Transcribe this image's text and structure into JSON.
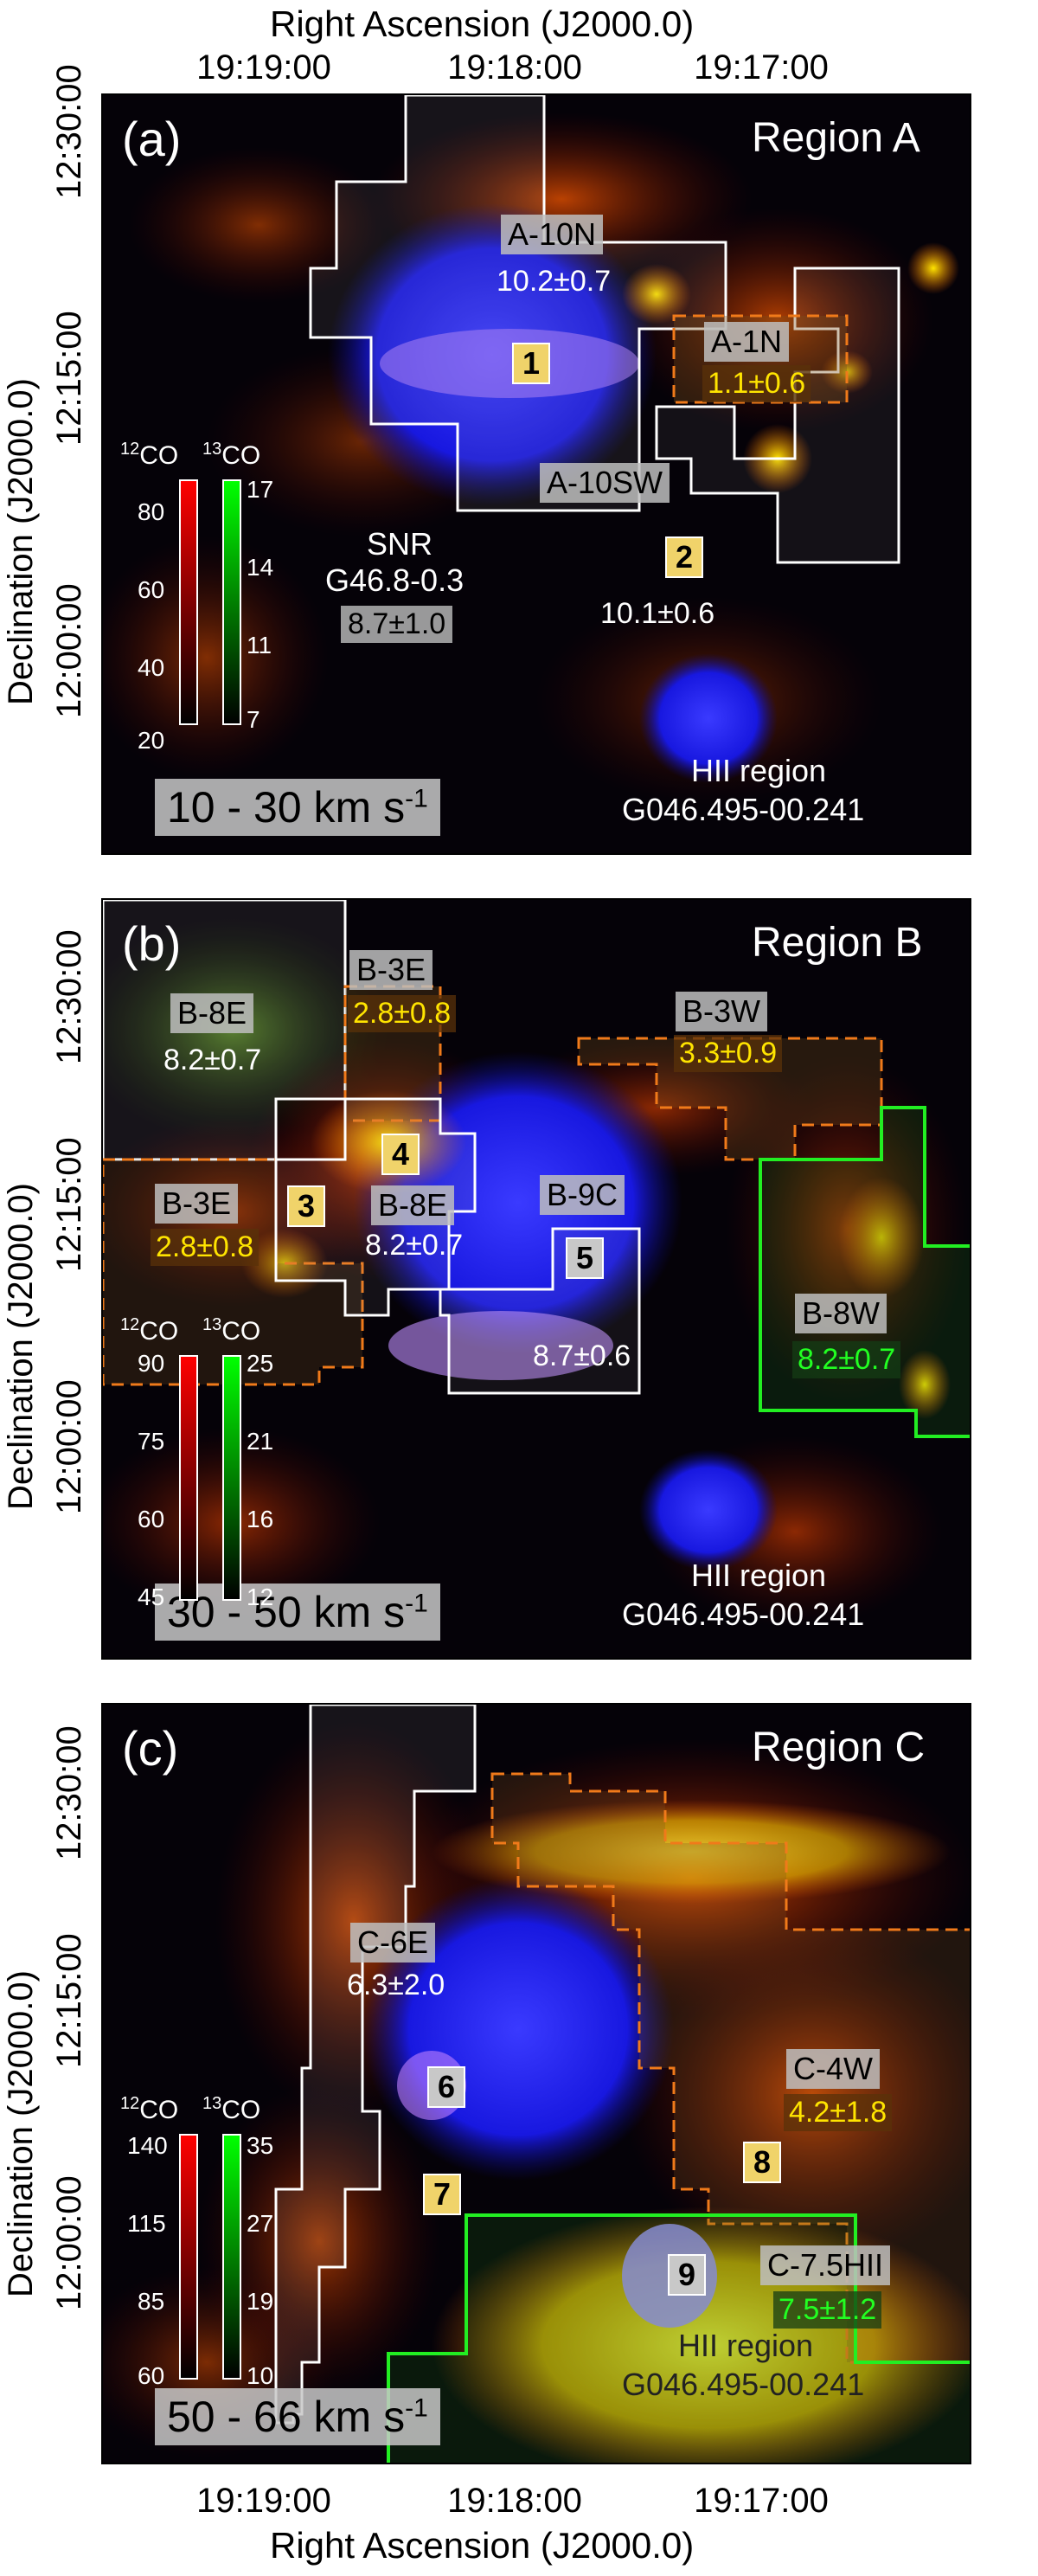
{
  "axes": {
    "top_title": "Right Ascension (J2000.0)",
    "bottom_title": "Right Ascension (J2000.0)",
    "y_title": "Declination (J2000.0)",
    "ra_ticks": [
      "19:19:00",
      "19:18:00",
      "19:17:00"
    ],
    "dec_ticks": [
      "12:30:00",
      "12:15:00",
      "12:00:00"
    ]
  },
  "panels": [
    {
      "label": "(a)",
      "region": "Region A",
      "velocity": "10 - 30 km s",
      "velocity_sup": "-1",
      "colorbar": {
        "co12_label": "12CO",
        "co12_sup": "12",
        "co12_base": "CO",
        "co13_sup": "13",
        "co13_base": "CO",
        "co12_ticks": [
          "80",
          "60",
          "40",
          "20"
        ],
        "co13_ticks": [
          "17",
          "14",
          "11",
          "7"
        ]
      },
      "snr_name": "SNR",
      "snr_id": "G46.8-0.3",
      "snr_value": "8.7±1.0",
      "hii_name": "HII region",
      "hii_id": "G046.495-00.241",
      "subregions": [
        {
          "tag": "A-10N",
          "value": "10.2±0.7",
          "style": "white"
        },
        {
          "tag": "A-1N",
          "value": "1.1±0.6",
          "style": "yellow"
        },
        {
          "tag": "A-10SW",
          "value": "10.1±0.6",
          "style": "white"
        }
      ],
      "numbers": [
        "1",
        "2"
      ]
    },
    {
      "label": "(b)",
      "region": "Region B",
      "velocity": "30 - 50 km s",
      "velocity_sup": "-1",
      "colorbar": {
        "co12_sup": "12",
        "co12_base": "CO",
        "co13_sup": "13",
        "co13_base": "CO",
        "co12_ticks": [
          "90",
          "75",
          "60",
          "45"
        ],
        "co13_ticks": [
          "25",
          "21",
          "16",
          "12"
        ]
      },
      "hii_name": "HII region",
      "hii_id": "G046.495-00.241",
      "subregions": [
        {
          "tag": "B-8E",
          "value": "8.2±0.7",
          "style": "white"
        },
        {
          "tag": "B-3E",
          "value": "2.8±0.8",
          "style": "yellow"
        },
        {
          "tag": "B-3W",
          "value": "3.3±0.9",
          "style": "yellow"
        },
        {
          "tag": "B-3E",
          "value": "2.8±0.8",
          "style": "yellow"
        },
        {
          "tag": "B-8E",
          "value": "8.2±0.7",
          "style": "white"
        },
        {
          "tag": "B-9C",
          "value": "8.7±0.6",
          "style": "white"
        },
        {
          "tag": "B-8W",
          "value": "8.2±0.7",
          "style": "green"
        }
      ],
      "numbers": [
        "3",
        "4",
        "5"
      ]
    },
    {
      "label": "(c)",
      "region": "Region C",
      "velocity": "50 - 66 km s",
      "velocity_sup": "-1",
      "colorbar": {
        "co12_sup": "12",
        "co12_base": "CO",
        "co13_sup": "13",
        "co13_base": "CO",
        "co12_ticks": [
          "140",
          "115",
          "85",
          "60"
        ],
        "co13_ticks": [
          "35",
          "27",
          "19",
          "10"
        ]
      },
      "hii_name": "HII region",
      "hii_id": "G046.495-00.241",
      "subregions": [
        {
          "tag": "C-6E",
          "value": "6.3±2.0",
          "style": "white"
        },
        {
          "tag": "C-4W",
          "value": "4.2±1.8",
          "style": "yellow"
        },
        {
          "tag": "C-7.5HII",
          "value": "7.5±1.2",
          "style": "green"
        }
      ],
      "numbers": [
        "6",
        "7",
        "8",
        "9"
      ]
    }
  ],
  "colors": {
    "white_contour": "#ffffff",
    "orange_contour": "#f07a1a",
    "green_contour": "#22ee22",
    "snr_blue": "#1a1aff"
  }
}
